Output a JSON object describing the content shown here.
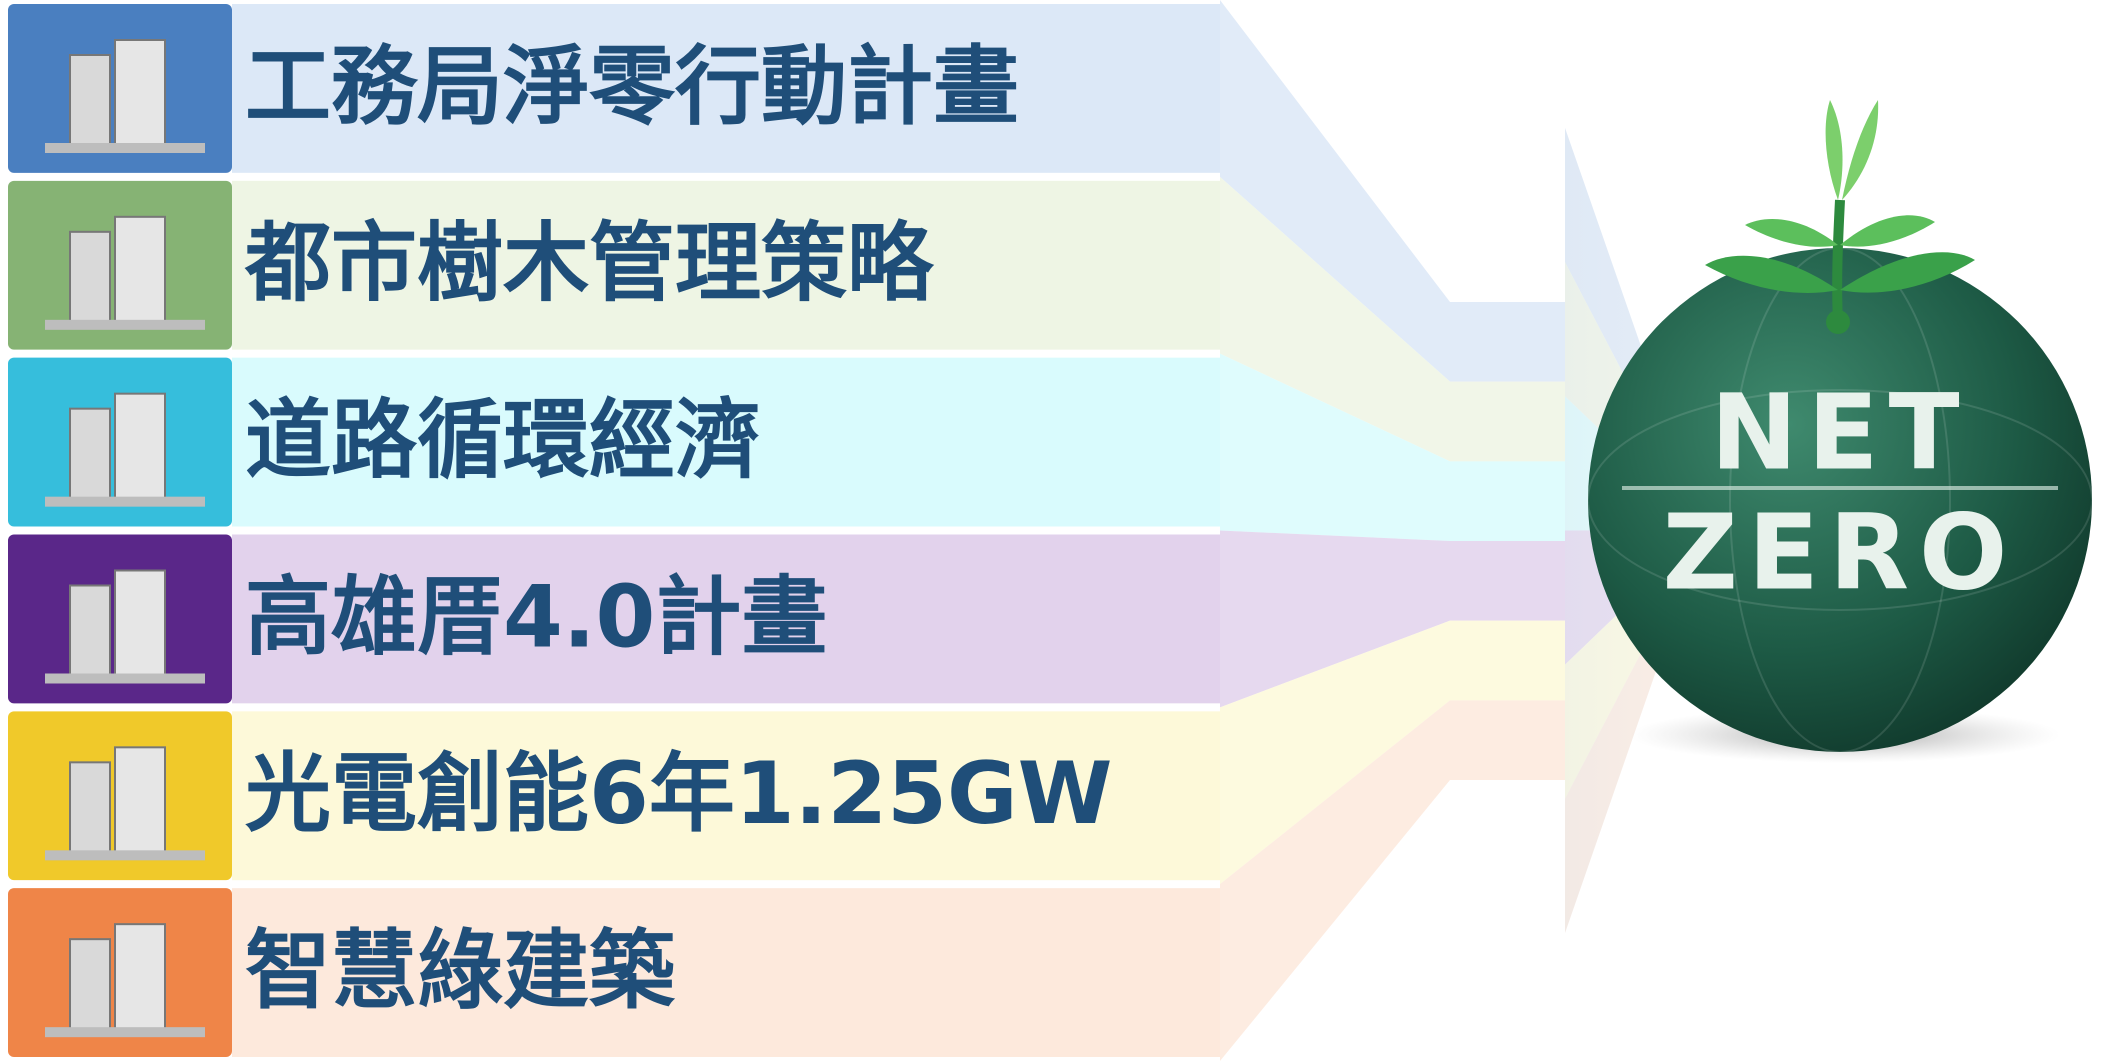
{
  "items": [
    {
      "label": "工務局淨零行動計畫"
    },
    {
      "label": "都市樹木管理策略"
    },
    {
      "label": "道路循環經濟"
    },
    {
      "label": "高雄厝4.0計畫"
    },
    {
      "label": "光電創能6年1.25GW"
    },
    {
      "label": "智慧綠建築"
    }
  ],
  "badge": {
    "line1": "NET",
    "line2": "ZERO"
  }
}
